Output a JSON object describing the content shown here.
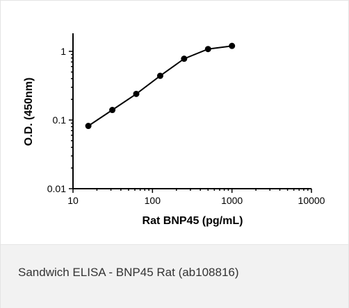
{
  "chart_data": {
    "type": "line",
    "title": "",
    "xlabel": "Rat BNP45 (pg/mL)",
    "ylabel": "O.D. (450nm)",
    "xscale": "log",
    "yscale": "log",
    "xlim": [
      10,
      10000
    ],
    "ylim": [
      0.01,
      2
    ],
    "xticks": [
      10,
      100,
      1000,
      10000
    ],
    "xtick_labels": [
      "10",
      "100",
      "1000",
      "10000"
    ],
    "yticks": [
      0.01,
      0.1,
      1
    ],
    "ytick_labels": [
      "0.01",
      "0.1",
      "1"
    ],
    "grid": false,
    "series": [
      {
        "x": [
          15.6,
          31.25,
          62.5,
          125,
          250,
          500,
          1000
        ],
        "y": [
          0.082,
          0.14,
          0.24,
          0.44,
          0.78,
          1.08,
          1.2
        ]
      }
    ],
    "line_color": "#000000",
    "marker": "circle"
  },
  "caption": "Sandwich ELISA - BNP45 Rat (ab108816)"
}
